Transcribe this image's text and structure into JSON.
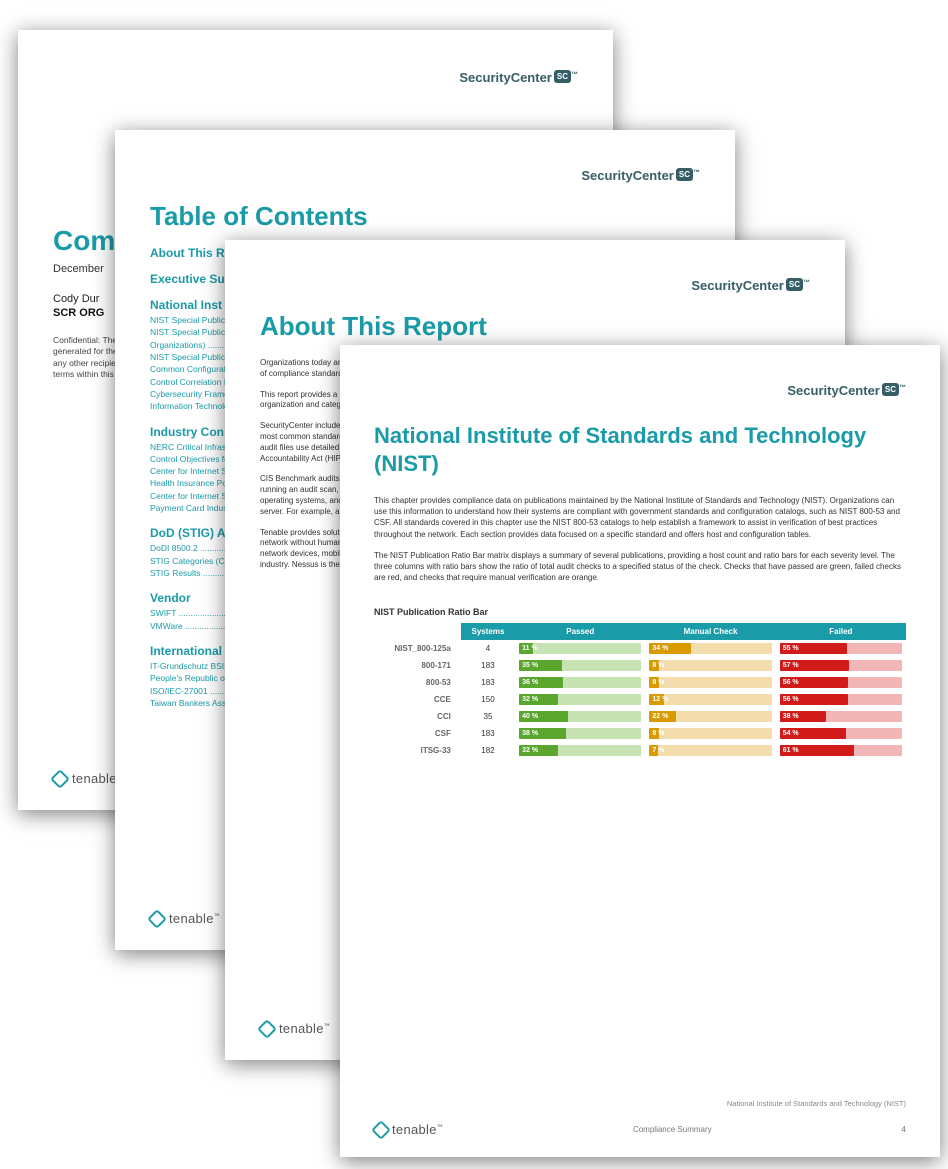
{
  "brand": {
    "name": "SecurityCenter",
    "badge": "SC",
    "tm": "™"
  },
  "tenable": {
    "name": "tenable",
    "icon_color": "#1a9ba8"
  },
  "page1": {
    "title_fragment": "Com",
    "date": "December",
    "prep": "Cody Dur",
    "org": "SCR ORG",
    "conf": "Confidential: The information contained in this report may be privileged and confidential and protected by law. The report has been generated for the exclusive use of the recipient via email, fax, or other means. Any disclosure, copying, distribution or use of this report by any other recipient company or person is strictly prohibited. This report must be stored and saved on protected systems. Violation of the terms within this report may result in legal action. If you have received any of the privileged information in error please contact the sender."
  },
  "page2": {
    "title": "Table of Contents",
    "sections": [
      {
        "head": "About This R",
        "links": []
      },
      {
        "head": "Executive Su",
        "links": []
      },
      {
        "head": "National Inst",
        "links": [
          "NIST Special Publicati",
          "NIST Special Publicati",
          "Organizations)  .........",
          "NIST Special Publicati",
          "Common Configuration",
          "Control Correlation Ide",
          "Cybersecurity Framew",
          "Information Technolog"
        ]
      },
      {
        "head": "Industry Con",
        "links": [
          "NERC Critical Infrastru",
          "Control Objectives for",
          "Center for Internet Sec",
          "Health Insurance Porta",
          "Center for Internet Sec",
          "Payment Card Industry"
        ]
      },
      {
        "head": "DoD (STIG) A",
        "links": [
          "DoDI 8500.2  .............",
          "STIG Categories (CAT",
          "STIG Results  ..........."
        ]
      },
      {
        "head": "Vendor",
        "links": [
          "SWIFT  .....................",
          "VMWare  ................."
        ]
      },
      {
        "head": "International",
        "links": [
          "IT-Grundschutz BSI-10",
          "People's Republic of C",
          "ISO/IEC-27001  .........",
          "Taiwan Bankers Assoc"
        ]
      }
    ]
  },
  "page3": {
    "title": "About This Report",
    "paras": [
      "Organizations today are challenged to keep up with changing compliance requirements. SecurityCenter provides the tools to help organizations stay on top of compliance standards and track progress. This report summarizes the status of several compliance standards and frameworks across the organization.",
      "This report provides a summary of the most common compliance audit standards. The standards have been organized into chapters based on the source organization and categories that each standard belongs to. Each standard contains a dedicated chapter (as shown below).",
      "SecurityCenter includes audits for many government standards as published by the Center for Internet Security, NIST, DISA and many other sources. The most common standards and their reference catalogs are NIST 800-53 and DISA STIG. Audits support all supported standards listed in the report. The audit files use detailed checks that audit the system against the published benchmark documents such as the Health Insurance Portability and Accountability Act (HIPAA), NIST Special Publications, the International Organization for Standardization (ISO), and others.",
      "CIS Benchmark audits also support many database and desktop application configurations such as SQL server, Oracle, Apache, IIS, and others. When running an audit scan, select the CIS benchmark or other related audit for the target application. For example, with audit files related to web servers, operating systems, and database settings, organizations can select and combine audits so that each applicable audit is run and executed on the target server. For example, a Windows 2008 server running a SQL 2008 server. This approach allows the analyst to better understand cross-standard coverage.",
      "Tenable provides solutions and products that help organizations achieve continuous compliance. SecurityCenter Continuous View (CV) monitors the network without human intervention and alerts on misconfigurations and vulnerabilities quickly and immediately. With coverage for servers, virtual hosts, network devices, mobile devices, hypervisors, databases, tablets, web servers, cloud applications, and more, CV provides the broadest coverage in the industry. Nessus is the global standard for customers, because it detects more."
    ]
  },
  "page4": {
    "title": "National Institute of Standards and Technology (NIST)",
    "paras": [
      "This chapter provides compliance data on publications maintained by the National Institute of Standards and Technology (NIST). Organizations can use this information to understand how their systems are compliant with government standards and configuration catalogs, such as NIST 800-53 and CSF. All standards covered in this chapter use the NIST 800-53 catalogs to help establish a framework to assist in verification of best practices throughout the network. Each section provides data focused on a specific standard and offers host and configuration tables.",
      "The NIST Publication Ratio Bar matrix displays a summary of several publications, providing a host count and ratio bars for each severity level. The three columns with ratio bars show the ratio of total audit checks to a specified status of the check. Checks that have passed are green, failed checks are red, and checks that require manual verification are orange."
    ],
    "table": {
      "caption": "NIST Publication Ratio Bar",
      "headers": [
        "",
        "Systems",
        "Passed",
        "Manual Check",
        "Failed"
      ],
      "colors": {
        "header_bg": "#1a9ba8",
        "passed_fill": "#5aa62f",
        "passed_track": "#c7e3b3",
        "manual_fill": "#d99a00",
        "manual_track": "#f3ddac",
        "failed_fill": "#d11b1b",
        "failed_track": "#f2b6b6"
      },
      "rows": [
        {
          "label": "NIST_800-125a",
          "systems": 4,
          "passed": 11,
          "manual": 34,
          "failed": 55
        },
        {
          "label": "800-171",
          "systems": 183,
          "passed": 35,
          "manual": 8,
          "failed": 57
        },
        {
          "label": "800-53",
          "systems": 183,
          "passed": 36,
          "manual": 8,
          "failed": 56
        },
        {
          "label": "CCE",
          "systems": 150,
          "passed": 32,
          "manual": 12,
          "failed": 56
        },
        {
          "label": "CCI",
          "systems": 35,
          "passed": 40,
          "manual": 22,
          "failed": 38
        },
        {
          "label": "CSF",
          "systems": 183,
          "passed": 38,
          "manual": 8,
          "failed": 54
        },
        {
          "label": "ITSG-33",
          "systems": 182,
          "passed": 32,
          "manual": 7,
          "failed": 61
        }
      ]
    },
    "footer": {
      "context": "National Institute of Standards and Technology (NIST)",
      "center": "Compliance Summary",
      "page": "4"
    }
  }
}
